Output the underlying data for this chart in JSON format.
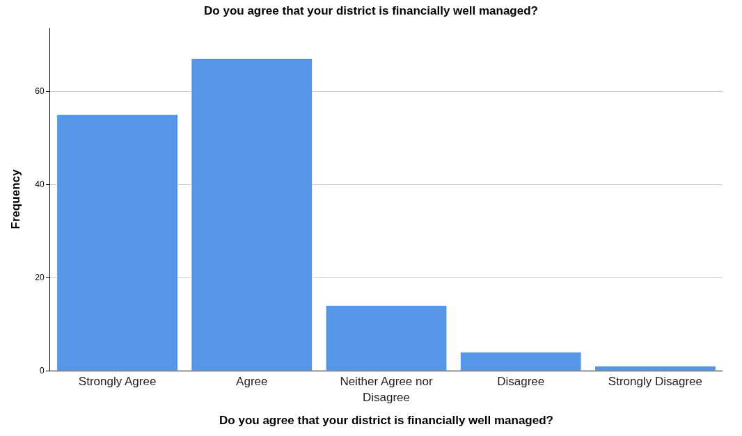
{
  "chart_data": {
    "type": "bar",
    "title": "Do you agree that your district is financially well managed?",
    "xlabel": "Do you agree that your district is financially well managed?",
    "ylabel": "Frequency",
    "categories": [
      "Strongly Agree",
      "Agree",
      "Neither Agree nor Disagree",
      "Disagree",
      "Strongly Disagree"
    ],
    "values": [
      55,
      67,
      14,
      4,
      1
    ],
    "color": "#5596e6",
    "ylim": [
      0,
      73.6
    ],
    "yticks": [
      0,
      20,
      40,
      60
    ],
    "grid": "y"
  }
}
